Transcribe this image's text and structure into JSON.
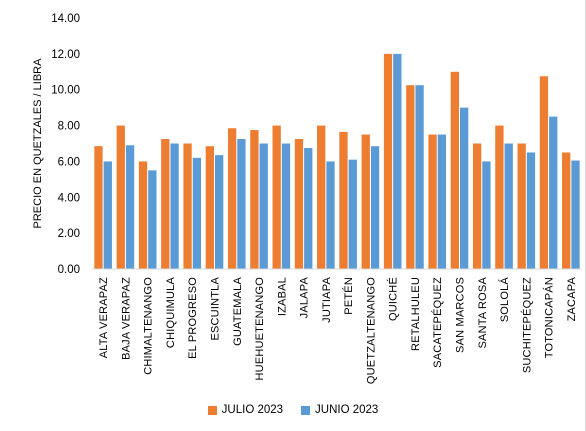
{
  "colors": {
    "series_julio": "#ED7D31",
    "series_junio": "#5B9BD5",
    "grid": "#d9d9d9",
    "background": "#ffffff"
  },
  "chart_data": {
    "type": "bar",
    "title": "",
    "xlabel": "",
    "ylabel": "PRECIO EN QUETZALES / LIBRA",
    "ylim": [
      0,
      14
    ],
    "yticks": [
      "0.00",
      "2.00",
      "4.00",
      "6.00",
      "8.00",
      "10.00",
      "12.00",
      "14.00"
    ],
    "grid": false,
    "legend_position": "bottom",
    "categories": [
      "ALTA VERAPAZ",
      "BAJA VERAPAZ",
      "CHIMALTENANGO",
      "CHIQUIMULA",
      "EL PROGRESO",
      "ESCUINTLA",
      "GUATEMALA",
      "HUEHUETENANGO",
      "IZABAL",
      "JALAPA",
      "JUTIAPA",
      "PETÉN",
      "QUETZALTENANGO",
      "QUICHÉ",
      "RETALHULEU",
      "SACATEPÉQUEZ",
      "SAN MARCOS",
      "SANTA ROSA",
      "SOLOLÁ",
      "SUCHITEPÉQUEZ",
      "TOTONICAPÁN",
      "ZACAPA"
    ],
    "series": [
      {
        "name": "JULIO 2023",
        "values": [
          6.85,
          8.0,
          6.0,
          7.25,
          7.0,
          6.85,
          7.85,
          7.75,
          8.0,
          7.25,
          8.0,
          7.65,
          7.5,
          12.0,
          10.25,
          7.5,
          11.0,
          7.0,
          8.0,
          7.0,
          10.75,
          6.5
        ]
      },
      {
        "name": "JUNIO 2023",
        "values": [
          6.0,
          6.9,
          5.5,
          7.0,
          6.2,
          6.35,
          7.25,
          7.0,
          7.0,
          6.75,
          6.0,
          6.1,
          6.85,
          12.0,
          10.25,
          7.5,
          9.0,
          6.0,
          7.0,
          6.5,
          8.5,
          6.05
        ]
      }
    ]
  }
}
